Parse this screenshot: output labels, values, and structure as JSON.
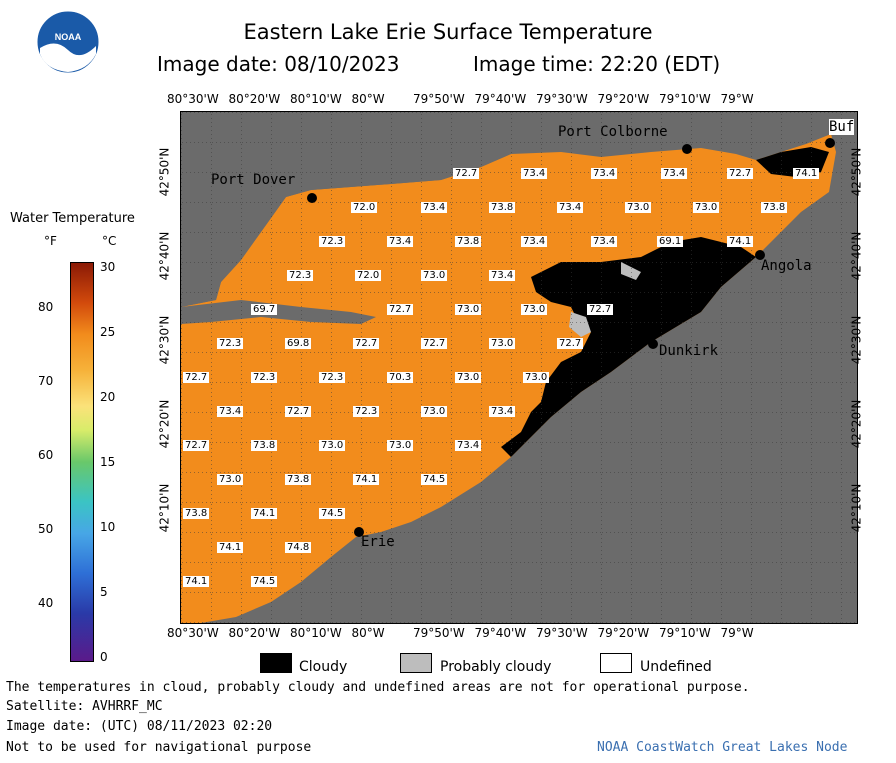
{
  "header": {
    "title": "Eastern Lake Erie Surface Temperature",
    "image_date": "Image date: 08/10/2023",
    "image_time": "Image time: 22:20 (EDT)"
  },
  "logo": {
    "text": "NOAA"
  },
  "colorbar": {
    "title": "Water Temperature",
    "unit_f": "°F",
    "unit_c": "°C",
    "f_ticks": [
      "80",
      "70",
      "60",
      "50",
      "40"
    ],
    "c_ticks": [
      "30",
      "25",
      "20",
      "15",
      "10",
      "5",
      "0"
    ]
  },
  "axes": {
    "longitudes": [
      "80°30'W",
      "80°20'W",
      "80°10'W",
      "80°W",
      "79°50'W",
      "79°40'W",
      "79°30'W",
      "79°20'W",
      "79°10'W",
      "79°W"
    ],
    "latitudes": [
      "42°50'N",
      "42°40'N",
      "42°30'N",
      "42°20'N",
      "42°10'N"
    ]
  },
  "cities": [
    "Port Colborne",
    "Port Dover",
    "Angola",
    "Dunkirk",
    "Erie",
    "Buf"
  ],
  "temperatures": [
    "72.7",
    "73.4",
    "73.4",
    "73.4",
    "72.7",
    "74.1",
    "72.0",
    "73.4",
    "73.8",
    "73.4",
    "73.0",
    "73.0",
    "73.8",
    "72.3",
    "73.4",
    "73.8",
    "73.4",
    "73.4",
    "69.1",
    "74.1",
    "72.3",
    "72.0",
    "73.0",
    "73.4",
    "69.7",
    "72.7",
    "73.0",
    "73.0",
    "72.7",
    "72.3",
    "69.8",
    "72.7",
    "72.7",
    "73.0",
    "72.7",
    "72.7",
    "72.3",
    "72.3",
    "70.3",
    "73.0",
    "73.0",
    "73.4",
    "72.7",
    "72.3",
    "73.0",
    "73.4",
    "72.7",
    "73.8",
    "73.0",
    "73.0",
    "73.4",
    "73.0",
    "73.8",
    "74.1",
    "74.5",
    "73.8",
    "74.1",
    "74.5",
    "74.1",
    "74.8",
    "74.1",
    "74.5"
  ],
  "legend": {
    "cloudy": "Cloudy",
    "probably_cloudy": "Probably cloudy",
    "undefined": "Undefined"
  },
  "footer": {
    "disclaimer": "The temperatures in cloud, probably cloudy and undefined areas are not for operational purpose.",
    "satellite": "Satellite: AVHRRF_MC",
    "utc_date": "Image date: (UTC) 08/11/2023  02:20",
    "nav_warning": "Not to be used for navigational purpose",
    "credit": "NOAA CoastWatch Great Lakes Node"
  },
  "colors": {
    "water": "#f28c1c",
    "land": "#6b6b6b",
    "cloud": "#000000",
    "probably_cloud": "#bdbdbd",
    "credit_text": "#3a6fb0"
  }
}
